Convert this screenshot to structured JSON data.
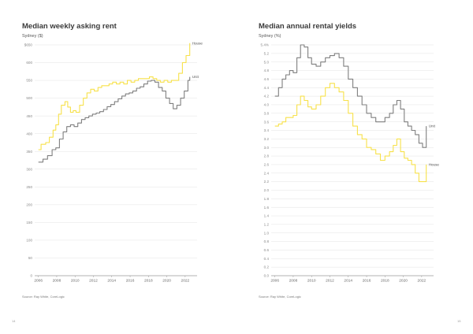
{
  "left": {
    "title": "Median weekly asking rent",
    "subtitle": "Sydney ($)",
    "source": "Source: Ray White, CoreLogic",
    "page_number": "14"
  },
  "right": {
    "title": "Median annual rental yields",
    "subtitle": "Sydney (%)",
    "source": "Source: Ray White, CoreLogic",
    "page_number": "15"
  },
  "colors": {
    "house": "#f7e14a",
    "unit": "#7f7f7f",
    "grid": "#e3e3e3",
    "axis": "#999999"
  },
  "chart_data": [
    {
      "type": "line",
      "title": "Median weekly asking rent",
      "subtitle": "Sydney ($)",
      "xlim": [
        2005.6,
        2023.3
      ],
      "ylim": [
        0,
        650
      ],
      "x_ticks": [
        2006,
        2008,
        2010,
        2012,
        2014,
        2016,
        2018,
        2020,
        2022
      ],
      "y_ticks": [
        0,
        50,
        100,
        150,
        200,
        250,
        300,
        350,
        400,
        450,
        500,
        550,
        600,
        650
      ],
      "y_tick_labels": [
        "0",
        "50",
        "100",
        "150",
        "200",
        "250",
        "300",
        "350",
        "400",
        "450",
        "500",
        "550",
        "600",
        "$650"
      ],
      "grid": true,
      "series": [
        {
          "name": "House",
          "color": "#f7e14a",
          "points": [
            [
              2006.0,
              355
            ],
            [
              2006.3,
              370
            ],
            [
              2006.8,
              375
            ],
            [
              2007.2,
              390
            ],
            [
              2007.6,
              410
            ],
            [
              2007.9,
              425
            ],
            [
              2008.2,
              455
            ],
            [
              2008.5,
              480
            ],
            [
              2008.9,
              490
            ],
            [
              2009.2,
              475
            ],
            [
              2009.5,
              460
            ],
            [
              2009.8,
              465
            ],
            [
              2010.1,
              460
            ],
            [
              2010.5,
              480
            ],
            [
              2010.9,
              500
            ],
            [
              2011.3,
              515
            ],
            [
              2011.7,
              525
            ],
            [
              2012.1,
              520
            ],
            [
              2012.5,
              530
            ],
            [
              2012.9,
              535
            ],
            [
              2013.3,
              535
            ],
            [
              2013.7,
              540
            ],
            [
              2014.1,
              545
            ],
            [
              2014.5,
              540
            ],
            [
              2014.9,
              545
            ],
            [
              2015.3,
              540
            ],
            [
              2015.7,
              550
            ],
            [
              2016.1,
              545
            ],
            [
              2016.5,
              550
            ],
            [
              2016.9,
              555
            ],
            [
              2017.3,
              555
            ],
            [
              2017.7,
              555
            ],
            [
              2018.1,
              560
            ],
            [
              2018.5,
              555
            ],
            [
              2018.9,
              550
            ],
            [
              2019.3,
              545
            ],
            [
              2019.7,
              550
            ],
            [
              2020.1,
              545
            ],
            [
              2020.5,
              550
            ],
            [
              2020.9,
              550
            ],
            [
              2021.3,
              570
            ],
            [
              2021.7,
              600
            ],
            [
              2022.1,
              620
            ],
            [
              2022.5,
              655
            ]
          ]
        },
        {
          "name": "Unit",
          "color": "#7f7f7f",
          "points": [
            [
              2006.0,
              320
            ],
            [
              2006.5,
              328
            ],
            [
              2007.0,
              338
            ],
            [
              2007.5,
              355
            ],
            [
              2007.9,
              360
            ],
            [
              2008.3,
              385
            ],
            [
              2008.7,
              405
            ],
            [
              2009.1,
              420
            ],
            [
              2009.5,
              425
            ],
            [
              2009.9,
              420
            ],
            [
              2010.3,
              430
            ],
            [
              2010.7,
              440
            ],
            [
              2011.1,
              445
            ],
            [
              2011.5,
              450
            ],
            [
              2011.9,
              455
            ],
            [
              2012.3,
              458
            ],
            [
              2012.7,
              462
            ],
            [
              2013.1,
              468
            ],
            [
              2013.5,
              476
            ],
            [
              2013.9,
              482
            ],
            [
              2014.3,
              490
            ],
            [
              2014.7,
              498
            ],
            [
              2015.1,
              506
            ],
            [
              2015.5,
              512
            ],
            [
              2015.9,
              515
            ],
            [
              2016.3,
              520
            ],
            [
              2016.7,
              528
            ],
            [
              2017.1,
              532
            ],
            [
              2017.5,
              540
            ],
            [
              2017.9,
              548
            ],
            [
              2018.3,
              550
            ],
            [
              2018.7,
              545
            ],
            [
              2019.1,
              530
            ],
            [
              2019.5,
              520
            ],
            [
              2019.9,
              500
            ],
            [
              2020.3,
              485
            ],
            [
              2020.7,
              470
            ],
            [
              2021.1,
              480
            ],
            [
              2021.5,
              500
            ],
            [
              2021.9,
              520
            ],
            [
              2022.3,
              550
            ],
            [
              2022.5,
              560
            ]
          ]
        }
      ]
    },
    {
      "type": "line",
      "title": "Median annual rental yields",
      "subtitle": "Sydney (%)",
      "xlim": [
        2005.6,
        2023.3
      ],
      "ylim": [
        0,
        5.4
      ],
      "x_ticks": [
        2006,
        2008,
        2010,
        2012,
        2014,
        2016,
        2018,
        2020,
        2022
      ],
      "y_ticks": [
        0.0,
        0.2,
        0.4,
        0.6,
        0.8,
        1.0,
        1.2,
        1.4,
        1.6,
        1.8,
        2.0,
        2.2,
        2.4,
        2.6,
        2.8,
        3.0,
        3.2,
        3.4,
        3.6,
        3.8,
        4.0,
        4.2,
        4.4,
        4.6,
        4.8,
        5.0,
        5.2,
        5.4
      ],
      "y_tick_labels": [
        "0.0",
        "0.2",
        "0.4",
        "0.6",
        "0.8",
        "1.0",
        "1.2",
        "1.4",
        "1.6",
        "1.8",
        "2.0",
        "2.2",
        "2.4",
        "2.6",
        "2.8",
        "3.0",
        "3.2",
        "3.4",
        "3.6",
        "3.8",
        "4.0",
        "4.2",
        "4.4",
        "4.6",
        "4.8",
        "5.0",
        "5.2",
        "5.4%"
      ],
      "grid": true,
      "series": [
        {
          "name": "Unit",
          "color": "#7f7f7f",
          "points": [
            [
              2006.0,
              4.2
            ],
            [
              2006.4,
              4.4
            ],
            [
              2006.8,
              4.6
            ],
            [
              2007.2,
              4.7
            ],
            [
              2007.6,
              4.8
            ],
            [
              2008.0,
              4.75
            ],
            [
              2008.4,
              5.1
            ],
            [
              2008.8,
              5.4
            ],
            [
              2009.2,
              5.35
            ],
            [
              2009.6,
              5.1
            ],
            [
              2010.0,
              4.95
            ],
            [
              2010.5,
              4.9
            ],
            [
              2011.0,
              5.0
            ],
            [
              2011.5,
              5.1
            ],
            [
              2012.0,
              5.15
            ],
            [
              2012.5,
              5.2
            ],
            [
              2013.0,
              5.1
            ],
            [
              2013.5,
              4.9
            ],
            [
              2014.0,
              4.6
            ],
            [
              2014.5,
              4.4
            ],
            [
              2015.0,
              4.2
            ],
            [
              2015.5,
              4.0
            ],
            [
              2016.0,
              3.8
            ],
            [
              2016.5,
              3.7
            ],
            [
              2017.0,
              3.6
            ],
            [
              2017.5,
              3.6
            ],
            [
              2018.0,
              3.7
            ],
            [
              2018.5,
              3.8
            ],
            [
              2018.9,
              4.0
            ],
            [
              2019.3,
              4.1
            ],
            [
              2019.7,
              3.9
            ],
            [
              2020.1,
              3.6
            ],
            [
              2020.5,
              3.5
            ],
            [
              2020.9,
              3.4
            ],
            [
              2021.3,
              3.3
            ],
            [
              2021.7,
              3.1
            ],
            [
              2022.1,
              3.0
            ],
            [
              2022.5,
              3.5
            ]
          ]
        },
        {
          "name": "House",
          "color": "#f7e14a",
          "points": [
            [
              2006.0,
              3.5
            ],
            [
              2006.4,
              3.55
            ],
            [
              2006.8,
              3.6
            ],
            [
              2007.2,
              3.7
            ],
            [
              2007.6,
              3.7
            ],
            [
              2008.0,
              3.75
            ],
            [
              2008.4,
              4.0
            ],
            [
              2008.8,
              4.2
            ],
            [
              2009.2,
              4.1
            ],
            [
              2009.6,
              3.95
            ],
            [
              2010.0,
              3.9
            ],
            [
              2010.5,
              4.0
            ],
            [
              2011.0,
              4.2
            ],
            [
              2011.5,
              4.4
            ],
            [
              2012.0,
              4.5
            ],
            [
              2012.5,
              4.4
            ],
            [
              2013.0,
              4.3
            ],
            [
              2013.5,
              4.1
            ],
            [
              2014.0,
              3.8
            ],
            [
              2014.5,
              3.5
            ],
            [
              2015.0,
              3.3
            ],
            [
              2015.5,
              3.2
            ],
            [
              2016.0,
              3.0
            ],
            [
              2016.5,
              2.95
            ],
            [
              2017.0,
              2.85
            ],
            [
              2017.5,
              2.7
            ],
            [
              2018.0,
              2.8
            ],
            [
              2018.5,
              2.9
            ],
            [
              2018.9,
              3.05
            ],
            [
              2019.3,
              3.2
            ],
            [
              2019.7,
              2.9
            ],
            [
              2020.1,
              2.75
            ],
            [
              2020.5,
              2.7
            ],
            [
              2020.9,
              2.6
            ],
            [
              2021.3,
              2.4
            ],
            [
              2021.7,
              2.2
            ],
            [
              2022.1,
              2.2
            ],
            [
              2022.5,
              2.6
            ]
          ]
        }
      ]
    }
  ]
}
